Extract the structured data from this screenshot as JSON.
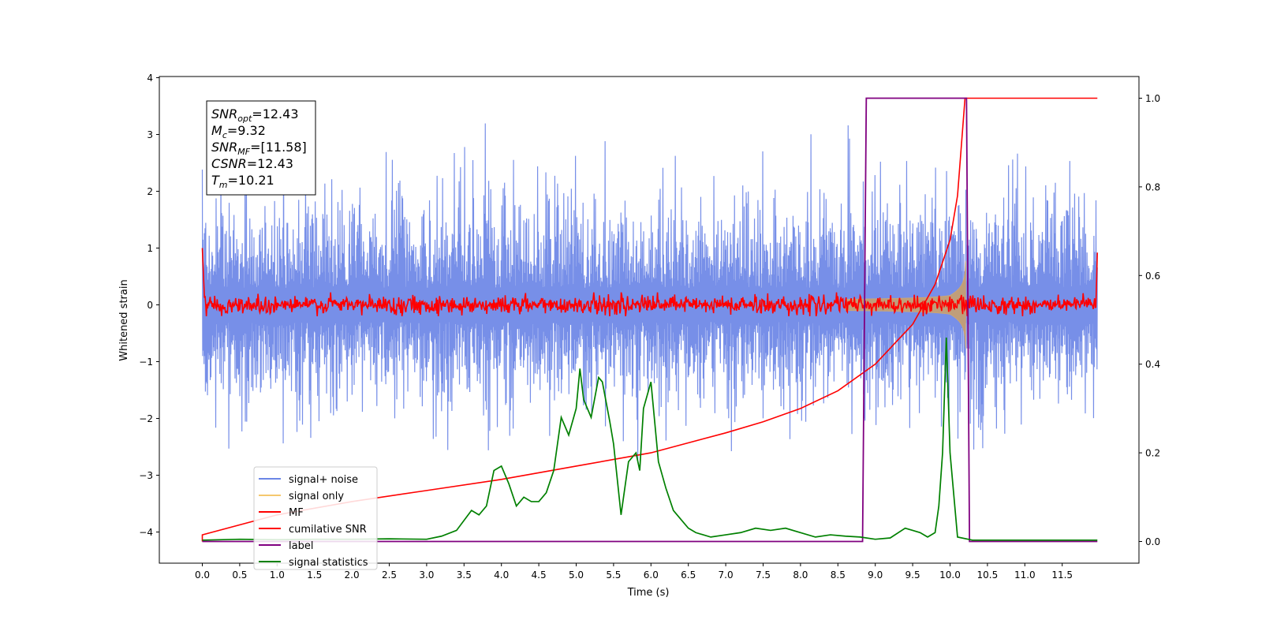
{
  "chart_data": {
    "type": "line",
    "xlabel": "Time (s)",
    "ylabel": "Whitened strain",
    "x_ticks": [
      "0.0",
      "0.5",
      "1.0",
      "1.5",
      "2.0",
      "2.5",
      "3.0",
      "3.5",
      "4.0",
      "4.5",
      "5.0",
      "5.5",
      "6.0",
      "6.5",
      "7.0",
      "7.5",
      "8.0",
      "8.5",
      "9.0",
      "9.5",
      "10.0",
      "10.5",
      "11.0",
      "11.5"
    ],
    "y_left_ticks": [
      "4",
      "3",
      "2",
      "1",
      "0",
      "−1",
      "−2",
      "−3",
      "−4"
    ],
    "y_right_ticks": [
      "1.0",
      "0.8",
      "0.6",
      "0.4",
      "0.2",
      "0.0"
    ],
    "xlim": [
      -0.6,
      12.5
    ],
    "ylim_left": [
      -4.6,
      4.03
    ],
    "ylim_right": [
      -0.05,
      1.05
    ],
    "legend_placement": "lower-left",
    "annotation": [
      {
        "name": "SNR",
        "sub": "opt",
        "value": "=12.43"
      },
      {
        "name": "M",
        "sub": "c",
        "value": "=9.32"
      },
      {
        "name": "SNR",
        "sub": "MF",
        "value": "=[11.58]"
      },
      {
        "name": "CSNR",
        "sub": "",
        "value": "=12.43"
      },
      {
        "name": "T",
        "sub": "m",
        "value": "=10.21"
      }
    ],
    "series": [
      {
        "name": "signal+ noise",
        "color": "#6b86e6",
        "axis": "left",
        "description_range": [
          -2.6,
          3.6
        ]
      },
      {
        "name": "signal only",
        "color": "#f5c86e",
        "axis": "left",
        "chirp_end": 10.21
      },
      {
        "name": "MF",
        "color": "#ff0000",
        "axis": "left"
      },
      {
        "name": "cumilative SNR",
        "color": "#ff0000",
        "axis": "right",
        "x": [
          0.0,
          1.0,
          2.0,
          3.0,
          4.0,
          5.0,
          6.0,
          7.0,
          7.5,
          8.0,
          8.5,
          9.0,
          9.5,
          9.8,
          10.0,
          10.1,
          10.2,
          11.97
        ],
        "y": [
          0.015,
          0.06,
          0.09,
          0.115,
          0.14,
          0.17,
          0.2,
          0.245,
          0.27,
          0.3,
          0.34,
          0.4,
          0.49,
          0.58,
          0.68,
          0.78,
          1.0,
          1.0
        ]
      },
      {
        "name": "label",
        "color": "#800080",
        "axis": "right",
        "x": [
          0.0,
          8.83,
          8.88,
          10.22,
          10.26,
          11.97
        ],
        "y": [
          0.0,
          0.0,
          1.0,
          1.0,
          0.0,
          0.0
        ]
      },
      {
        "name": "signal statistics",
        "color": "#008000",
        "axis": "right",
        "x": [
          0.0,
          0.5,
          1.0,
          1.5,
          2.0,
          2.5,
          3.0,
          3.2,
          3.4,
          3.6,
          3.7,
          3.8,
          3.9,
          4.0,
          4.1,
          4.2,
          4.3,
          4.4,
          4.5,
          4.6,
          4.7,
          4.8,
          4.9,
          5.0,
          5.05,
          5.1,
          5.2,
          5.3,
          5.35,
          5.45,
          5.5,
          5.6,
          5.7,
          5.8,
          5.85,
          5.9,
          6.0,
          6.1,
          6.2,
          6.3,
          6.4,
          6.5,
          6.6,
          6.8,
          7.0,
          7.2,
          7.4,
          7.6,
          7.8,
          8.0,
          8.2,
          8.4,
          8.6,
          8.8,
          9.0,
          9.2,
          9.4,
          9.5,
          9.6,
          9.7,
          9.8,
          9.85,
          9.9,
          9.95,
          10.0,
          10.1,
          10.3,
          11.0,
          11.97
        ],
        "y": [
          0.003,
          0.005,
          0.004,
          0.005,
          0.005,
          0.006,
          0.005,
          0.012,
          0.025,
          0.07,
          0.06,
          0.08,
          0.16,
          0.17,
          0.13,
          0.08,
          0.1,
          0.09,
          0.09,
          0.11,
          0.16,
          0.28,
          0.24,
          0.3,
          0.39,
          0.32,
          0.28,
          0.37,
          0.36,
          0.27,
          0.22,
          0.06,
          0.18,
          0.2,
          0.16,
          0.3,
          0.36,
          0.18,
          0.12,
          0.07,
          0.05,
          0.03,
          0.02,
          0.01,
          0.015,
          0.02,
          0.03,
          0.025,
          0.03,
          0.02,
          0.01,
          0.015,
          0.012,
          0.01,
          0.005,
          0.008,
          0.03,
          0.025,
          0.02,
          0.01,
          0.02,
          0.08,
          0.2,
          0.46,
          0.2,
          0.01,
          0.003,
          0.003,
          0.003
        ]
      }
    ]
  }
}
